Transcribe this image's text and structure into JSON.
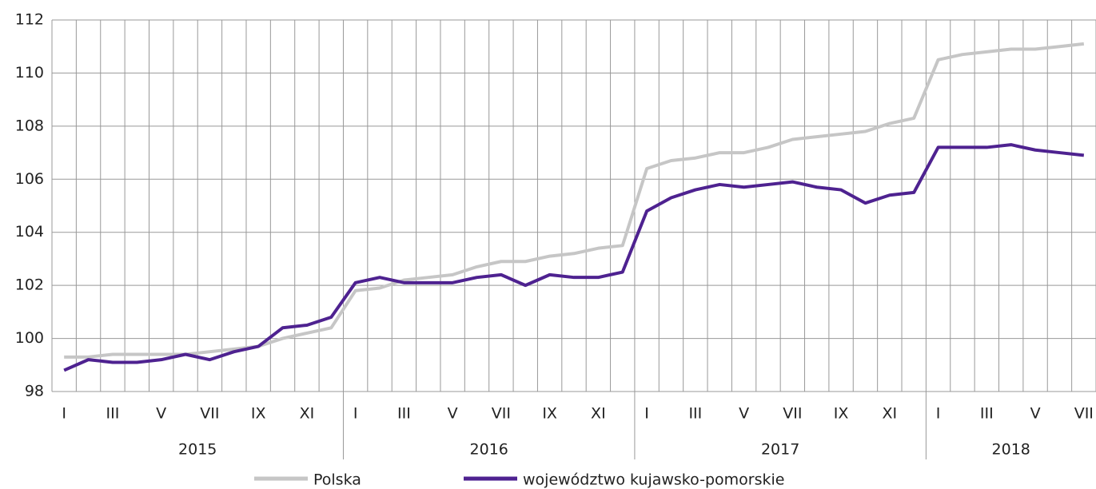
{
  "chart_data": {
    "type": "line",
    "categories": [
      "I",
      null,
      "III",
      null,
      "V",
      null,
      "VII",
      null,
      "IX",
      null,
      "XI",
      null,
      "I",
      null,
      "III",
      null,
      "V",
      null,
      "VII",
      null,
      "IX",
      null,
      "XI",
      null,
      "I",
      null,
      "III",
      null,
      "V",
      null,
      "VII",
      null,
      "IX",
      null,
      "XI",
      null,
      "I",
      null,
      "III",
      null,
      "V",
      null,
      "VII"
    ],
    "x_groups": [
      "2015",
      "2016",
      "2017",
      "2018"
    ],
    "series": [
      {
        "name": "Polska",
        "color": "#c6c6c6",
        "values": [
          99.3,
          99.3,
          99.4,
          99.4,
          99.4,
          99.4,
          99.5,
          99.6,
          99.7,
          100.0,
          100.2,
          100.4,
          101.8,
          101.9,
          102.2,
          102.3,
          102.4,
          102.7,
          102.9,
          102.9,
          103.1,
          103.2,
          103.4,
          103.5,
          106.4,
          106.7,
          106.8,
          107.0,
          107.0,
          107.2,
          107.5,
          107.6,
          107.7,
          107.8,
          108.1,
          108.3,
          110.5,
          110.7,
          110.8,
          110.9,
          110.9,
          111.0,
          111.1
        ]
      },
      {
        "name": "województwo kujawsko-pomorskie",
        "color": "#4e2290",
        "values": [
          98.8,
          99.2,
          99.1,
          99.1,
          99.2,
          99.4,
          99.2,
          99.5,
          99.7,
          100.4,
          100.5,
          100.8,
          102.1,
          102.3,
          102.1,
          102.1,
          102.1,
          102.3,
          102.4,
          102.0,
          102.4,
          102.3,
          102.3,
          102.5,
          104.8,
          105.3,
          105.6,
          105.8,
          105.7,
          105.8,
          105.9,
          105.7,
          105.6,
          105.1,
          105.4,
          105.5,
          107.2,
          107.2,
          107.2,
          107.3,
          107.1,
          107.0,
          106.9
        ]
      }
    ],
    "ylim": [
      98,
      112
    ],
    "yticks": [
      98,
      100,
      102,
      104,
      106,
      108,
      110,
      112
    ],
    "grid": true
  }
}
